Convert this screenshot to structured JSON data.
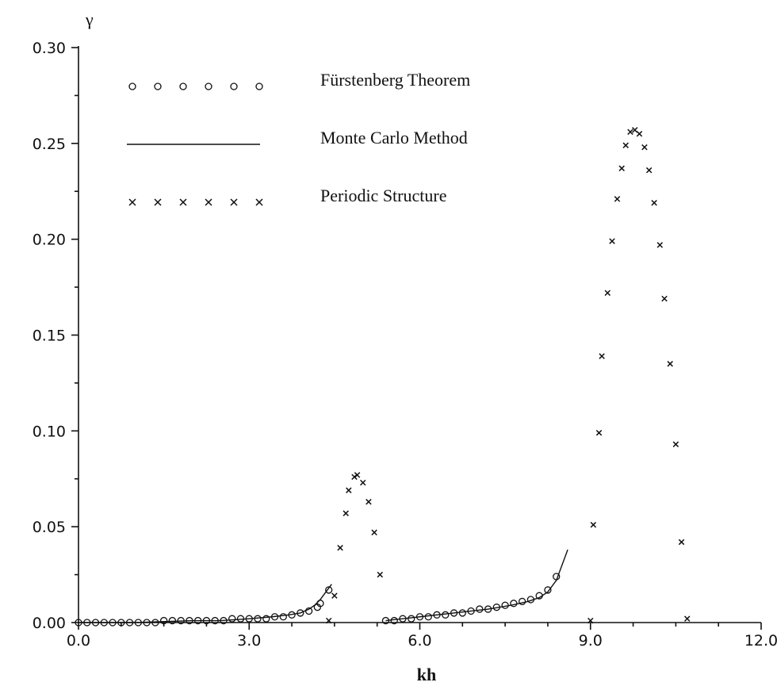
{
  "chart_data": {
    "type": "scatter",
    "xlabel": "kh",
    "ylabel": "γ",
    "xlim": [
      0.0,
      12.0
    ],
    "ylim": [
      0.0,
      0.3
    ],
    "xticks": [
      "0.0",
      "3.0",
      "6.0",
      "9.0",
      "12.0"
    ],
    "yticks": [
      "0.00",
      "0.05",
      "0.10",
      "0.15",
      "0.20",
      "0.25",
      "0.30"
    ],
    "grid": false,
    "legend_position": "top-left",
    "series": [
      {
        "name": "Fürstenberg Theorem",
        "marker": "circle",
        "x": [
          0.0,
          0.15,
          0.3,
          0.45,
          0.6,
          0.75,
          0.9,
          1.05,
          1.2,
          1.35,
          1.5,
          1.65,
          1.8,
          1.95,
          2.1,
          2.25,
          2.4,
          2.55,
          2.7,
          2.85,
          3.0,
          3.15,
          3.3,
          3.45,
          3.6,
          3.75,
          3.9,
          4.05,
          4.2,
          4.25,
          4.4,
          5.4,
          5.55,
          5.7,
          5.85,
          6.0,
          6.15,
          6.3,
          6.45,
          6.6,
          6.75,
          6.9,
          7.05,
          7.2,
          7.35,
          7.5,
          7.65,
          7.8,
          7.95,
          8.1,
          8.25,
          8.4
        ],
        "y": [
          0.0,
          0.0,
          0.0,
          0.0,
          0.0,
          0.0,
          0.0,
          0.0,
          0.0,
          0.0,
          0.001,
          0.001,
          0.001,
          0.001,
          0.001,
          0.001,
          0.001,
          0.001,
          0.002,
          0.002,
          0.002,
          0.002,
          0.002,
          0.003,
          0.003,
          0.004,
          0.005,
          0.006,
          0.008,
          0.01,
          0.017,
          0.001,
          0.001,
          0.002,
          0.002,
          0.003,
          0.003,
          0.004,
          0.004,
          0.005,
          0.005,
          0.006,
          0.007,
          0.007,
          0.008,
          0.009,
          0.01,
          0.011,
          0.012,
          0.014,
          0.017,
          0.024
        ]
      },
      {
        "name": "Monte Carlo Method",
        "marker": "line",
        "segments": [
          {
            "x": [
              0.0,
              1.0,
              2.0,
              2.5,
              3.0,
              3.4,
              3.7,
              3.9,
              4.05,
              4.15,
              4.25,
              4.35,
              4.45
            ],
            "y": [
              0.0,
              0.0,
              0.001,
              0.001,
              0.002,
              0.003,
              0.004,
              0.005,
              0.007,
              0.009,
              0.012,
              0.016,
              0.02
            ]
          },
          {
            "x": [
              5.4,
              6.0,
              6.6,
              7.2,
              7.6,
              7.9,
              8.1,
              8.25,
              8.4,
              8.5,
              8.6
            ],
            "y": [
              0.001,
              0.003,
              0.005,
              0.007,
              0.009,
              0.011,
              0.013,
              0.016,
              0.022,
              0.03,
              0.038
            ]
          }
        ]
      },
      {
        "name": "Periodic Structure",
        "marker": "x",
        "x": [
          4.4,
          4.5,
          4.6,
          4.7,
          4.75,
          4.85,
          4.9,
          5.0,
          5.1,
          5.2,
          5.3,
          9.0,
          9.05,
          9.15,
          9.2,
          9.3,
          9.38,
          9.47,
          9.55,
          9.62,
          9.7,
          9.78,
          9.86,
          9.95,
          10.03,
          10.12,
          10.22,
          10.3,
          10.4,
          10.5,
          10.6,
          10.7
        ],
        "y": [
          0.001,
          0.014,
          0.039,
          0.057,
          0.069,
          0.076,
          0.077,
          0.073,
          0.063,
          0.047,
          0.025,
          0.001,
          0.051,
          0.099,
          0.139,
          0.172,
          0.199,
          0.221,
          0.237,
          0.249,
          0.256,
          0.257,
          0.255,
          0.248,
          0.236,
          0.219,
          0.197,
          0.169,
          0.135,
          0.093,
          0.042,
          0.002
        ]
      }
    ]
  }
}
